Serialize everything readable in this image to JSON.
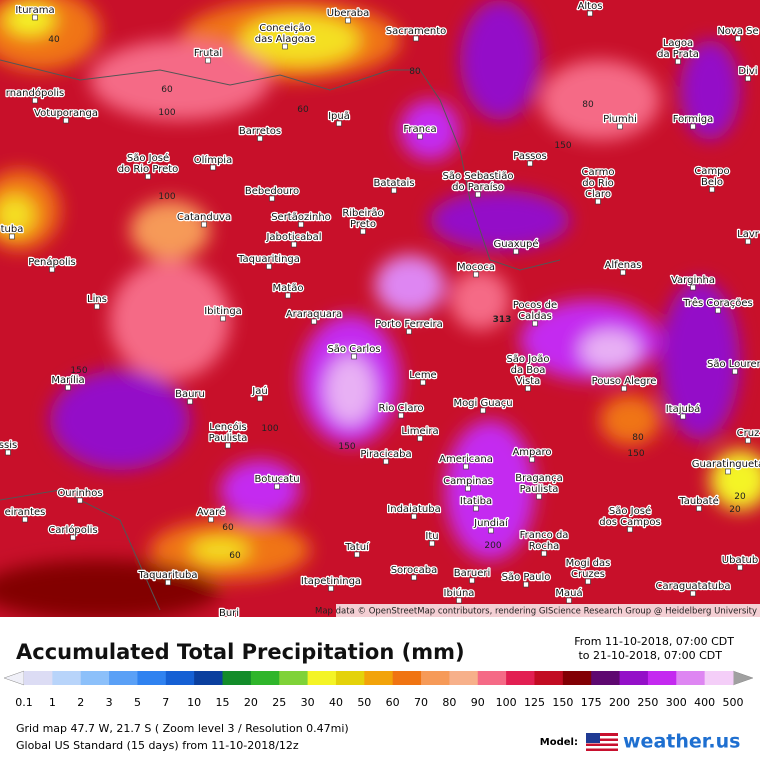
{
  "map": {
    "cities": [
      {
        "lines": [
          "Iturama"
        ]
      },
      {
        "lines": [
          "Conceição",
          "das Alagoas"
        ]
      },
      {
        "lines": [
          "Uberaba"
        ]
      },
      {
        "lines": [
          "Altos"
        ]
      },
      {
        "lines": [
          "Sacramento"
        ]
      },
      {
        "lines": [
          "Lagoa",
          "da Prata"
        ]
      },
      {
        "lines": [
          "Nova Se"
        ]
      },
      {
        "lines": [
          "Frutal"
        ]
      },
      {
        "lines": [
          "rnandópolis"
        ]
      },
      {
        "lines": [
          "Votuporanga"
        ]
      },
      {
        "lines": [
          "Ipuã"
        ]
      },
      {
        "lines": [
          "Barretos"
        ]
      },
      {
        "lines": [
          "Franca"
        ]
      },
      {
        "lines": [
          "Piumhi"
        ]
      },
      {
        "lines": [
          "Formiga"
        ]
      },
      {
        "lines": [
          "Divi"
        ]
      },
      {
        "lines": [
          "São José",
          "do Rio Preto"
        ]
      },
      {
        "lines": [
          "Olímpia"
        ]
      },
      {
        "lines": [
          "Passos"
        ]
      },
      {
        "lines": [
          "Carmo",
          "do Rio",
          "Claro"
        ]
      },
      {
        "lines": [
          "Campo",
          "Belo"
        ]
      },
      {
        "lines": [
          "Bebedouro"
        ]
      },
      {
        "lines": [
          "Batatais"
        ]
      },
      {
        "lines": [
          "São Sebastião",
          "do Paraíso"
        ]
      },
      {
        "lines": [
          "Catanduva"
        ]
      },
      {
        "lines": [
          "Sertãozinho"
        ]
      },
      {
        "lines": [
          "Ribeirão",
          "Preto"
        ]
      },
      {
        "lines": [
          "Jaboticabal"
        ]
      },
      {
        "lines": [
          "Guaxupé"
        ]
      },
      {
        "lines": [
          "Lavr"
        ]
      },
      {
        "lines": [
          "tuba"
        ]
      },
      {
        "lines": [
          "Taquaritinga"
        ]
      },
      {
        "lines": [
          "Penápolis"
        ]
      },
      {
        "lines": [
          "Mococa"
        ]
      },
      {
        "lines": [
          "Alfenas"
        ]
      },
      {
        "lines": [
          "Varginha"
        ]
      },
      {
        "lines": [
          "Matão"
        ]
      },
      {
        "lines": [
          "Lins"
        ]
      },
      {
        "lines": [
          "Pocos de",
          "Caldas"
        ]
      },
      {
        "lines": [
          "Três Corações"
        ]
      },
      {
        "lines": [
          "Ibitinga"
        ]
      },
      {
        "lines": [
          "Araraquara"
        ]
      },
      {
        "lines": [
          "Porto Ferreira"
        ]
      },
      {
        "lines": [
          "São Carlos"
        ]
      },
      {
        "lines": [
          "São João",
          "da Boa",
          "Vista"
        ]
      },
      {
        "lines": [
          "São Louren"
        ]
      },
      {
        "lines": [
          "Marília"
        ]
      },
      {
        "lines": [
          "Leme"
        ]
      },
      {
        "lines": [
          "Pouso Alegre"
        ]
      },
      {
        "lines": [
          "Bauru"
        ]
      },
      {
        "lines": [
          "Jaú"
        ]
      },
      {
        "lines": [
          "Rio Claro"
        ]
      },
      {
        "lines": [
          "Mogi Guaçu"
        ]
      },
      {
        "lines": [
          "Itajubá"
        ]
      },
      {
        "lines": [
          "Lençóis",
          "Paulista"
        ]
      },
      {
        "lines": [
          "Limeira"
        ]
      },
      {
        "lines": [
          "Cruz"
        ]
      },
      {
        "lines": [
          "ssis"
        ]
      },
      {
        "lines": [
          "Piracicaba"
        ]
      },
      {
        "lines": [
          "Americana"
        ]
      },
      {
        "lines": [
          "Amparo"
        ]
      },
      {
        "lines": [
          "Guaratinguetá"
        ]
      },
      {
        "lines": [
          "Campinas"
        ]
      },
      {
        "lines": [
          "Bragança",
          "Paulista"
        ]
      },
      {
        "lines": [
          "Botucatu"
        ]
      },
      {
        "lines": [
          "Ourinhos"
        ]
      },
      {
        "lines": [
          "Itatiba"
        ]
      },
      {
        "lines": [
          "Taubaté"
        ]
      },
      {
        "lines": [
          "Indaiatuba"
        ]
      },
      {
        "lines": [
          "eirantes"
        ]
      },
      {
        "lines": [
          "Avaré"
        ]
      },
      {
        "lines": [
          "São José",
          "dos Campos"
        ]
      },
      {
        "lines": [
          "Jundiaí"
        ]
      },
      {
        "lines": [
          "Franco da",
          "Rocha"
        ]
      },
      {
        "lines": [
          "Carlópolis"
        ]
      },
      {
        "lines": [
          "Tatuí"
        ]
      },
      {
        "lines": [
          "Itu"
        ]
      },
      {
        "lines": [
          "Ubatub"
        ]
      },
      {
        "lines": [
          "Mogi das",
          "Cruzes"
        ]
      },
      {
        "lines": [
          "Taquarituba"
        ]
      },
      {
        "lines": [
          "Sorocaba"
        ]
      },
      {
        "lines": [
          "Barueri"
        ]
      },
      {
        "lines": [
          "São Paulo"
        ]
      },
      {
        "lines": [
          "Itapetininga"
        ]
      },
      {
        "lines": [
          "Caraguatatuba"
        ]
      },
      {
        "lines": [
          "Ibiúna"
        ]
      },
      {
        "lines": [
          "Mauá"
        ]
      },
      {
        "lines": [
          "Buri"
        ]
      }
    ],
    "contour_labels": [
      "40",
      "60",
      "100",
      "100",
      "80",
      "60",
      "80",
      "150",
      "313",
      "150",
      "100",
      "150",
      "80",
      "150",
      "60",
      "60",
      "200",
      "20",
      "20"
    ],
    "attribution": "Map data © OpenStreetMap contributors, rendering GIScience Research Group @ Heidelberg University"
  },
  "panel": {
    "title": "Accumulated Total Precipitation (mm)",
    "from": "From 11-10-2018, 07:00 CDT",
    "to": "to 21-10-2018, 07:00 CDT",
    "legend": {
      "labels": [
        "0.1",
        "1",
        "2",
        "3",
        "5",
        "7",
        "10",
        "15",
        "20",
        "25",
        "30",
        "40",
        "50",
        "60",
        "70",
        "80",
        "90",
        "100",
        "125",
        "150",
        "175",
        "200",
        "250",
        "300",
        "400",
        "500"
      ],
      "under_color": "#f0f0f8",
      "over_color": "#a0a0a0",
      "colors": [
        "#dcdcf4",
        "#b8d4fa",
        "#8cc0fa",
        "#5aa0f6",
        "#2f82f0",
        "#1560d4",
        "#0b3f9e",
        "#138c2a",
        "#2fb52b",
        "#7fd238",
        "#f4f426",
        "#e4d20a",
        "#f2a30a",
        "#f07412",
        "#f69a58",
        "#f7b08a",
        "#f56a86",
        "#e21f52",
        "#c20c22",
        "#820004",
        "#5e0870",
        "#9410c8",
        "#c429f0",
        "#de86f2",
        "#f4cef8"
      ]
    },
    "grid_info": "Grid map 47.7 W, 21.7 S ( Zoom level 3 / Resolution 0.47mi)",
    "model_info": "Global US Standard (15 days) from 11-10-2018/12z",
    "model_label": "Model:",
    "brand": "weather.us"
  }
}
